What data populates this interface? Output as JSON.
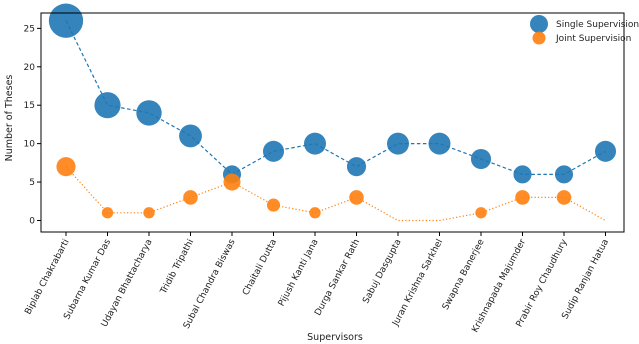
{
  "chart_data": {
    "type": "scatter",
    "title": "",
    "xlabel": "Supervisors",
    "ylabel": "Number of Theses",
    "ylim": [
      -1.5,
      27
    ],
    "yticks": [
      0,
      5,
      10,
      15,
      20,
      25
    ],
    "grid": false,
    "legend_position": "top-right",
    "categories": [
      "Biplab Chakrabarti",
      "Subarna Kumar Das",
      "Udayan Bhattacharya",
      "Tridib Tripathi",
      "Subal Chandra Biswas",
      "Chaitali Dutta",
      "Pijush Kanti Jana",
      "Durga Sankar Rath",
      "Sabuj Dasgupta",
      "Juran Krishna Sarkhel",
      "Swapna Banerjee",
      "Krishnapada Majumder",
      "Prabir Roy Chaudhury",
      "Sudip Ranjan Hatua"
    ],
    "series": [
      {
        "name": "Single Supervision",
        "color": "#1f77b4",
        "line_style": "dashed",
        "values": [
          26,
          15,
          14,
          11,
          6,
          9,
          10,
          7,
          10,
          10,
          8,
          6,
          6,
          9
        ]
      },
      {
        "name": "Joint Supervision",
        "color": "#ff7f0e",
        "line_style": "dotted",
        "values": [
          7,
          1,
          1,
          3,
          5,
          2,
          1,
          3,
          0,
          0,
          1,
          3,
          3,
          0
        ]
      }
    ]
  }
}
